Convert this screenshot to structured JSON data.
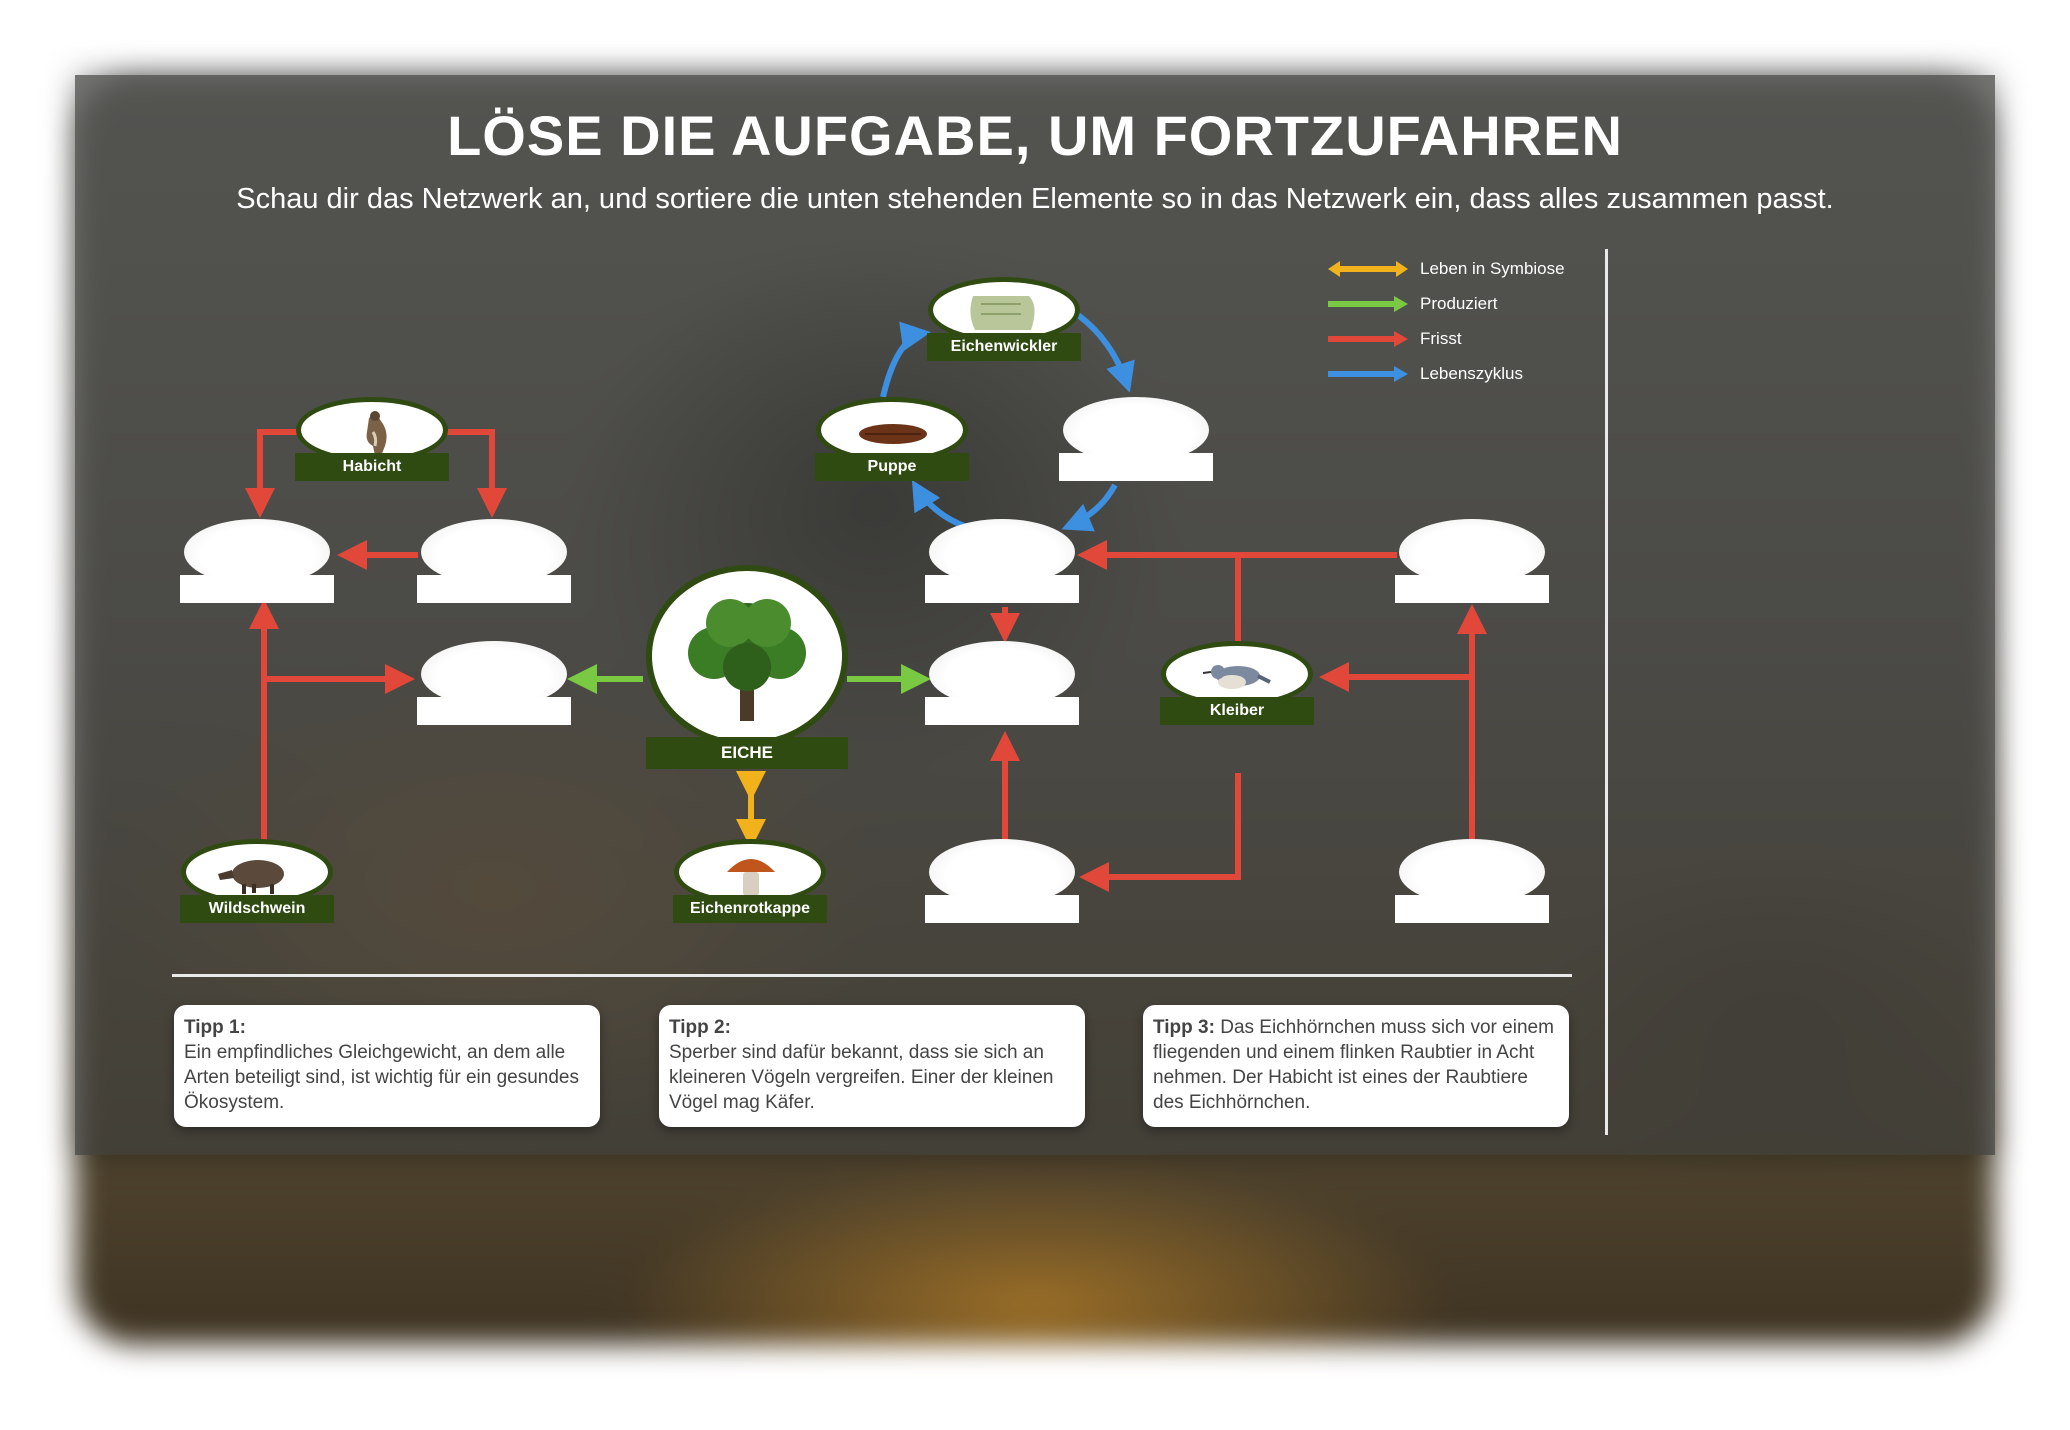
{
  "header": {
    "title": "LÖSE DIE AUFGABE, UM FORTZUFAHREN",
    "subtitle": "Schau dir das Netzwerk an, und sortiere die unten stehenden Elemente so in das Netzwerk ein, dass alles zusammen passt."
  },
  "legend": [
    {
      "label": "Leben in Symbiose",
      "color": "#f2b21c",
      "double": true
    },
    {
      "label": "Produziert",
      "color": "#7ac943",
      "double": false
    },
    {
      "label": "Frisst",
      "color": "#e2483a",
      "double": false
    },
    {
      "label": "Lebenszyklus",
      "color": "#3d8fe0",
      "double": false
    }
  ],
  "nodes": {
    "habicht": {
      "label": "Habicht",
      "icon": "hawk-icon"
    },
    "wildschwein": {
      "label": "Wildschwein",
      "icon": "boar-icon"
    },
    "eiche": {
      "label": "EICHE",
      "icon": "oak-tree-icon"
    },
    "eichenrotkappe": {
      "label": "Eichenrotkappe",
      "icon": "mushroom-icon"
    },
    "eichenwickler": {
      "label": "Eichenwickler",
      "icon": "moth-icon"
    },
    "puppe": {
      "label": "Puppe",
      "icon": "pupa-icon"
    },
    "kleiber": {
      "label": "Kleiber",
      "icon": "nuthatch-icon"
    }
  },
  "empty_slot_count": 10,
  "tips": [
    {
      "heading": "Tipp 1:",
      "text": "Ein empfindliches Gleichgewicht, an dem alle Arten beteiligt sind, ist wichtig für ein gesundes Ökosystem."
    },
    {
      "heading": "Tipp 2:",
      "text": "Sperber sind dafür bekannt, dass sie sich an kleineren Vögeln vergreifen. Einer der kleinen Vögel mag Käfer."
    },
    {
      "heading": "Tipp 3:",
      "text": "Das Eichhörnchen muss sich vor einem fliegenden und einem flinken Raubtier in Acht nehmen. Der Habicht ist eines der Raubtiere des Eichhörnchen."
    }
  ],
  "colors": {
    "symbiose": "#f2b21c",
    "produziert": "#7ac943",
    "frisst": "#e2483a",
    "lebenszyklus": "#3d8fe0",
    "label_bg": "#2f4b12"
  }
}
